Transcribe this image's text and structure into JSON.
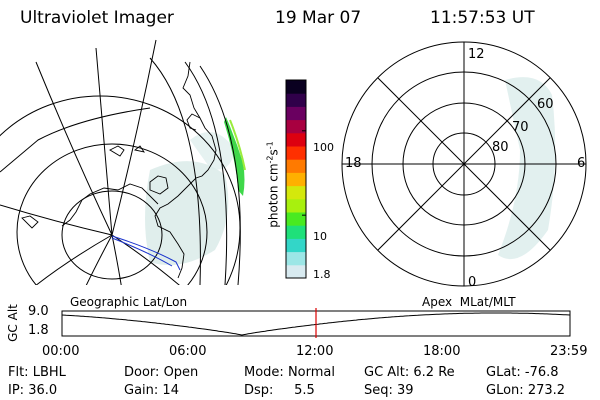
{
  "header": {
    "instrument": "Ultraviolet Imager",
    "date": "19 Mar 07",
    "time": "11:57:53 UT"
  },
  "colorbar": {
    "unit_label": "photon cm",
    "unit_sup1": "-2",
    "unit_mid": "s",
    "unit_sup2": "-1",
    "tick_labels": [
      "100",
      "10",
      "1.8"
    ],
    "tick_values": [
      100,
      10,
      1.8
    ],
    "range": [
      1.8,
      400
    ],
    "scale": "log",
    "colors": [
      "#d8eaf0",
      "#9ce6e6",
      "#33d6c8",
      "#1fe07a",
      "#49ea21",
      "#a8f00e",
      "#d4e80c",
      "#ffb000",
      "#ff7a00",
      "#ff3000",
      "#dd0010",
      "#a80040",
      "#6a0060",
      "#30004a",
      "#0a0020"
    ]
  },
  "left_map": {
    "label": "Geographic Lat/Lon"
  },
  "right_dial": {
    "label": "Apex  MLat/MLT",
    "mlt_labels": [
      "12",
      "18",
      "6",
      "0"
    ],
    "lat_labels": [
      "60",
      "70",
      "80"
    ]
  },
  "altitude_plot": {
    "ylabel": "GC Alt",
    "y_ticks": [
      "9.0",
      "1.8"
    ],
    "y_range": [
      1.8,
      9.0
    ],
    "x_ticks": [
      "00:00",
      "06:00",
      "12:00",
      "18:00",
      "23:59"
    ],
    "current_time_hours": 12.0,
    "marker_color": "#dd0000"
  },
  "status": {
    "flt_label": "Flt:",
    "flt_value": "LBHL",
    "ip_label": "IP:",
    "ip_value": "36.0",
    "door_label": "Door:",
    "door_value": "Open",
    "gain_label": "Gain:",
    "gain_value": "14",
    "mode_label": "Mode:",
    "mode_value": "Normal",
    "dsp_label": "Dsp:",
    "dsp_value": "5.5",
    "gcalt_label": "GC Alt:",
    "gcalt_value": "6.2 Re",
    "seq_label": "Seq:",
    "seq_value": "39",
    "glat_label": "GLat:",
    "glat_value": "-76.8",
    "glon_label": "GLon:",
    "glon_value": "273.2"
  }
}
